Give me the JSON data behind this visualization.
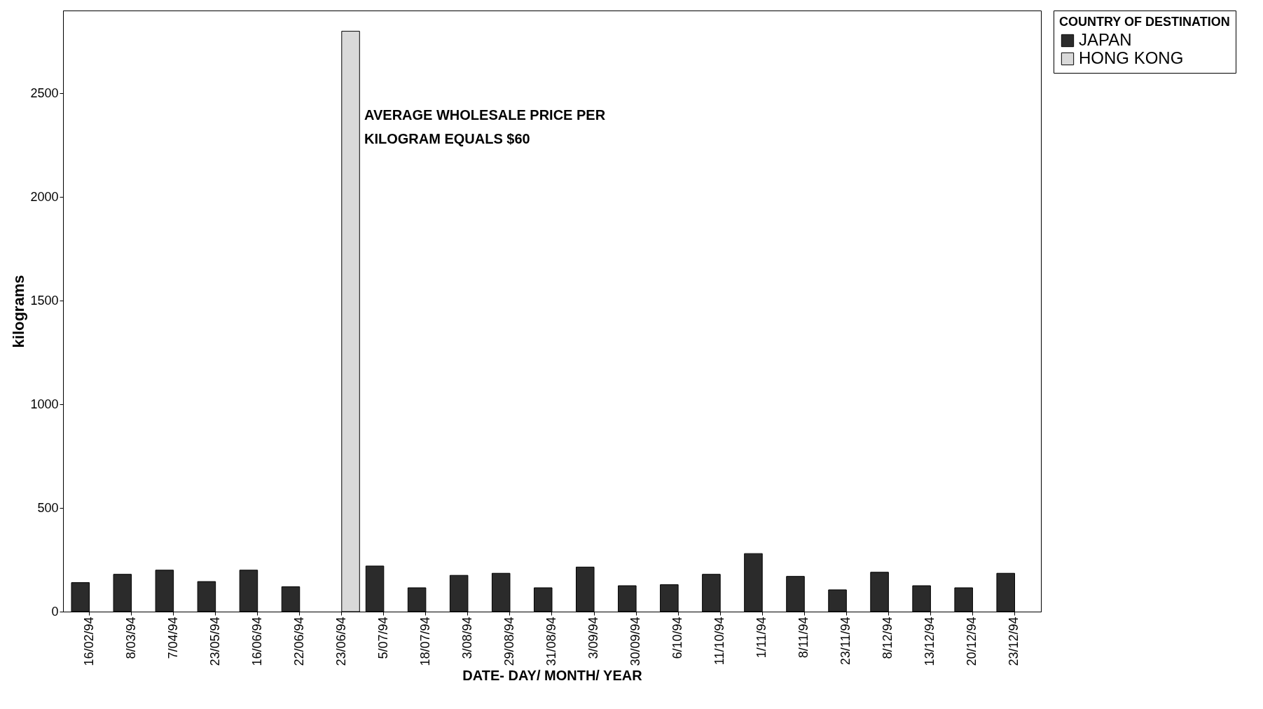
{
  "chart_data": {
    "type": "bar",
    "xlabel": "DATE- DAY/ MONTH/ YEAR",
    "ylabel": "kilograms",
    "legend_title": "COUNTRY OF DESTINATION",
    "categories": [
      "16/02/94",
      "8/03/94",
      "7/04/94",
      "23/05/94",
      "16/06/94",
      "22/06/94",
      "23/06/94",
      "5/07/94",
      "18/07/94",
      "3/08/94",
      "29/08/94",
      "31/08/94",
      "3/09/94",
      "30/09/94",
      "6/10/94",
      "11/10/94",
      "1/11/94",
      "8/11/94",
      "23/11/94",
      "8/12/94",
      "13/12/94",
      "20/12/94",
      "23/12/94"
    ],
    "series": [
      {
        "name": "JAPAN",
        "color": "#2b2b2b",
        "values": [
          140,
          180,
          200,
          145,
          200,
          120,
          null,
          220,
          115,
          175,
          185,
          115,
          215,
          125,
          130,
          180,
          280,
          170,
          105,
          190,
          125,
          115,
          185
        ]
      },
      {
        "name": "HONG KONG",
        "color": "#d9d9d9",
        "values": [
          null,
          null,
          null,
          null,
          null,
          null,
          2800,
          null,
          null,
          null,
          null,
          null,
          null,
          null,
          null,
          null,
          null,
          null,
          null,
          null,
          null,
          null,
          null
        ]
      }
    ],
    "ylim": [
      0,
      2900
    ],
    "yticks": [
      0,
      500,
      1000,
      1500,
      2000,
      2500
    ],
    "annotations": [
      "AVERAGE WHOLESALE PRICE PER",
      "KILOGRAM EQUALS  $60"
    ],
    "grid": false,
    "legend": "right"
  }
}
